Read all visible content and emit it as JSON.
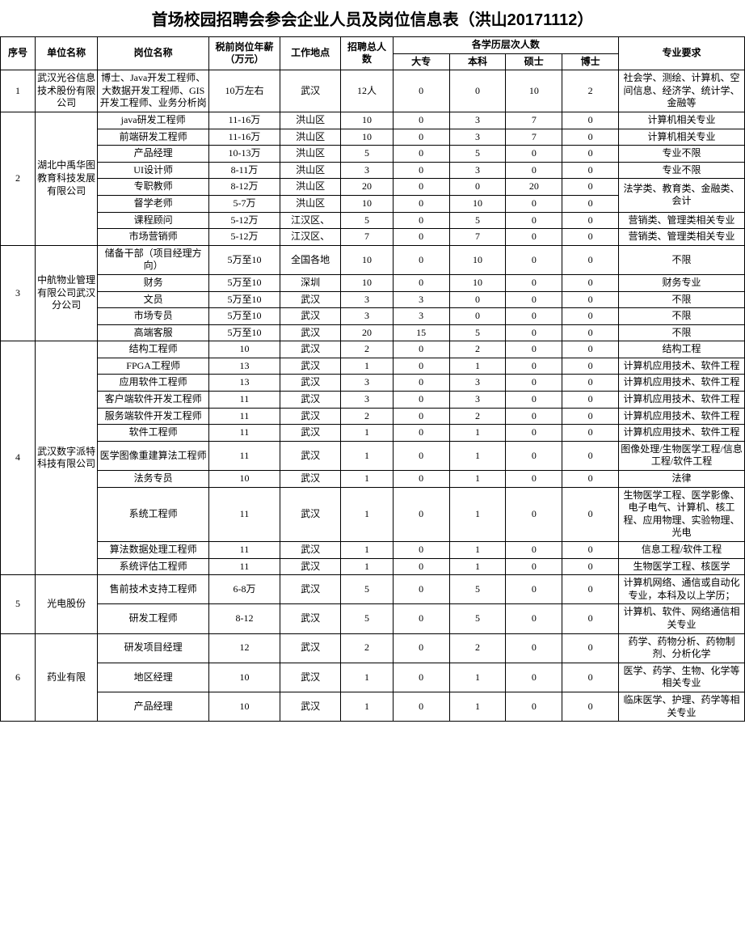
{
  "title": "首场校园招聘会参会企业人员及岗位信息表（洪山20171112）",
  "headers": {
    "seq": "序号",
    "company": "单位名称",
    "position": "岗位名称",
    "salary": "税前岗位年薪（万元）",
    "location": "工作地点",
    "total": "招聘总人数",
    "eduGroup": "各学历层次人数",
    "edu1": "大专",
    "edu2": "本科",
    "edu3": "硕士",
    "edu4": "博士",
    "major": "专业要求"
  },
  "companies": [
    {
      "seq": "1",
      "name": "武汉光谷信息技术股份有限公司",
      "rows": [
        {
          "position": "博士、Java开发工程师、大数据开发工程师、GIS开发工程师、业务分析岗",
          "salary": "10万左右",
          "location": "武汉",
          "total": "12人",
          "edu": [
            "0",
            "0",
            "10",
            "2"
          ],
          "major": "社会学、测绘、计算机、空间信息、经济学、统计学、金融等"
        }
      ]
    },
    {
      "seq": "2",
      "name": "湖北中禹华图教育科技发展有限公司",
      "rows": [
        {
          "position": "java研发工程师",
          "salary": "11-16万",
          "location": "洪山区",
          "total": "10",
          "edu": [
            "0",
            "3",
            "7",
            "0"
          ],
          "major": "计算机相关专业"
        },
        {
          "position": "前端研发工程师",
          "salary": "11-16万",
          "location": "洪山区",
          "total": "10",
          "edu": [
            "0",
            "3",
            "7",
            "0"
          ],
          "major": "计算机相关专业"
        },
        {
          "position": "产品经理",
          "salary": "10-13万",
          "location": "洪山区",
          "total": "5",
          "edu": [
            "0",
            "5",
            "0",
            "0"
          ],
          "major": "专业不限"
        },
        {
          "position": "UI设计师",
          "salary": "8-11万",
          "location": "洪山区",
          "total": "3",
          "edu": [
            "0",
            "3",
            "0",
            "0"
          ],
          "major": "专业不限"
        },
        {
          "position": "专职教师",
          "salary": "8-12万",
          "location": "洪山区",
          "total": "20",
          "edu": [
            "0",
            "0",
            "20",
            "0"
          ],
          "major": "法学类、教育类、金融类、会计",
          "majorRowspan": 2
        },
        {
          "position": "督学老师",
          "salary": "5-7万",
          "location": "洪山区",
          "total": "10",
          "edu": [
            "0",
            "10",
            "0",
            "0"
          ]
        },
        {
          "position": "课程顾问",
          "salary": "5-12万",
          "location": "江汉区、",
          "total": "5",
          "edu": [
            "0",
            "5",
            "0",
            "0"
          ],
          "major": "营销类、管理类相关专业"
        },
        {
          "position": "市场营销师",
          "salary": "5-12万",
          "location": "江汉区、",
          "total": "7",
          "edu": [
            "0",
            "7",
            "0",
            "0"
          ],
          "major": "营销类、管理类相关专业"
        }
      ]
    },
    {
      "seq": "3",
      "name": "中航物业管理有限公司武汉分公司",
      "rows": [
        {
          "position": "储备干部（项目经理方向）",
          "salary": "5万至10",
          "location": "全国各地",
          "total": "10",
          "edu": [
            "0",
            "10",
            "0",
            "0"
          ],
          "major": "不限"
        },
        {
          "position": "财务",
          "salary": "5万至10",
          "location": "深圳",
          "total": "10",
          "edu": [
            "0",
            "10",
            "0",
            "0"
          ],
          "major": "财务专业"
        },
        {
          "position": "文员",
          "salary": "5万至10",
          "location": "武汉",
          "total": "3",
          "edu": [
            "3",
            "0",
            "0",
            "0"
          ],
          "major": "不限"
        },
        {
          "position": "市场专员",
          "salary": "5万至10",
          "location": "武汉",
          "total": "3",
          "edu": [
            "3",
            "0",
            "0",
            "0"
          ],
          "major": "不限"
        },
        {
          "position": "高端客服",
          "salary": "5万至10",
          "location": "武汉",
          "total": "20",
          "edu": [
            "15",
            "5",
            "0",
            "0"
          ],
          "major": "不限"
        }
      ]
    },
    {
      "seq": "4",
      "name": "武汉数字派特科技有限公司",
      "rows": [
        {
          "position": "结构工程师",
          "salary": "10",
          "location": "武汉",
          "total": "2",
          "edu": [
            "0",
            "2",
            "0",
            "0"
          ],
          "major": "结构工程"
        },
        {
          "position": "FPGA工程师",
          "salary": "13",
          "location": "武汉",
          "total": "1",
          "edu": [
            "0",
            "1",
            "0",
            "0"
          ],
          "major": "计算机应用技术、软件工程"
        },
        {
          "position": "应用软件工程师",
          "salary": "13",
          "location": "武汉",
          "total": "3",
          "edu": [
            "0",
            "3",
            "0",
            "0"
          ],
          "major": "计算机应用技术、软件工程"
        },
        {
          "position": "客户端软件开发工程师",
          "salary": "11",
          "location": "武汉",
          "total": "3",
          "edu": [
            "0",
            "3",
            "0",
            "0"
          ],
          "major": "计算机应用技术、软件工程"
        },
        {
          "position": "服务端软件开发工程师",
          "salary": "11",
          "location": "武汉",
          "total": "2",
          "edu": [
            "0",
            "2",
            "0",
            "0"
          ],
          "major": "计算机应用技术、软件工程"
        },
        {
          "position": "软件工程师",
          "salary": "11",
          "location": "武汉",
          "total": "1",
          "edu": [
            "0",
            "1",
            "0",
            "0"
          ],
          "major": "计算机应用技术、软件工程"
        },
        {
          "position": "医学图像重建算法工程师",
          "salary": "11",
          "location": "武汉",
          "total": "1",
          "edu": [
            "0",
            "1",
            "0",
            "0"
          ],
          "major": "图像处理/生物医学工程/信息工程/软件工程"
        },
        {
          "position": "法务专员",
          "salary": "10",
          "location": "武汉",
          "total": "1",
          "edu": [
            "0",
            "1",
            "0",
            "0"
          ],
          "major": "法律"
        },
        {
          "position": "系统工程师",
          "salary": "11",
          "location": "武汉",
          "total": "1",
          "edu": [
            "0",
            "1",
            "0",
            "0"
          ],
          "major": "生物医学工程、医学影像、电子电气、计算机、核工程、应用物理、实验物理、光电"
        },
        {
          "position": "算法数据处理工程师",
          "salary": "11",
          "location": "武汉",
          "total": "1",
          "edu": [
            "0",
            "1",
            "0",
            "0"
          ],
          "major": "信息工程/软件工程"
        },
        {
          "position": "系统评估工程师",
          "salary": "11",
          "location": "武汉",
          "total": "1",
          "edu": [
            "0",
            "1",
            "0",
            "0"
          ],
          "major": "生物医学工程、核医学"
        }
      ]
    },
    {
      "seq": "5",
      "name": "光电股份",
      "rows": [
        {
          "position": "售前技术支持工程师",
          "salary": "6-8万",
          "location": "武汉",
          "total": "5",
          "edu": [
            "0",
            "5",
            "0",
            "0"
          ],
          "major": "计算机网络、通信或自动化专业，本科及以上学历；"
        },
        {
          "position": "研发工程师",
          "salary": "8-12",
          "location": "武汉",
          "total": "5",
          "edu": [
            "0",
            "5",
            "0",
            "0"
          ],
          "major": "计算机、软件、网络通信相关专业"
        }
      ]
    },
    {
      "seq": "6",
      "name": "药业有限",
      "rows": [
        {
          "position": "研发项目经理",
          "salary": "12",
          "location": "武汉",
          "total": "2",
          "edu": [
            "0",
            "2",
            "0",
            "0"
          ],
          "major": "药学、药物分析、药物制剂、分析化学"
        },
        {
          "position": "地区经理",
          "salary": "10",
          "location": "武汉",
          "total": "1",
          "edu": [
            "0",
            "1",
            "0",
            "0"
          ],
          "major": "医学、药学、生物、化学等相关专业"
        },
        {
          "position": "产品经理",
          "salary": "10",
          "location": "武汉",
          "total": "1",
          "edu": [
            "0",
            "1",
            "0",
            "0"
          ],
          "major": "临床医学、护理、药学等相关专业"
        }
      ]
    }
  ]
}
